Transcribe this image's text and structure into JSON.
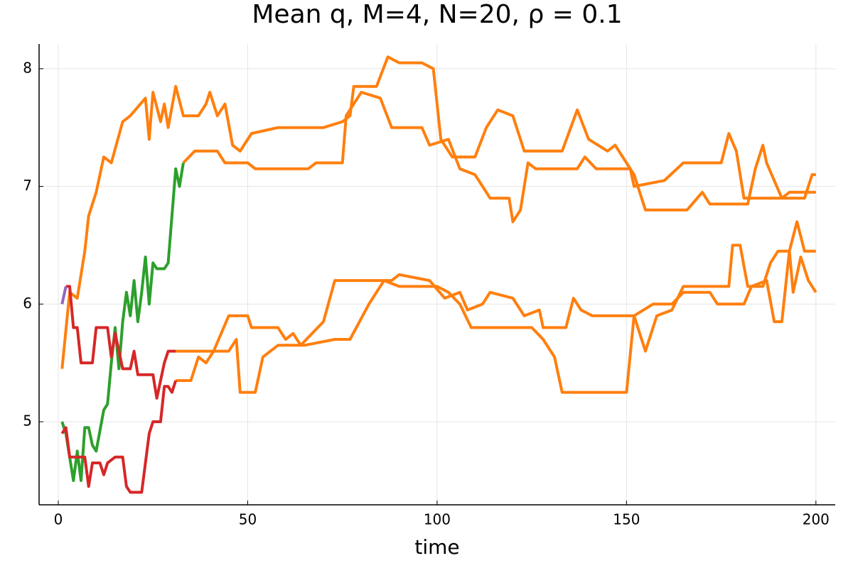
{
  "chart_data": {
    "type": "line",
    "title": "Mean q, M=4, N=20, ρ = 0.1",
    "x_label": "time",
    "xlim": [
      -5.07,
      205.1
    ],
    "ylim": [
      4.294,
      8.21
    ],
    "xticks": [
      0,
      50,
      100,
      150,
      200
    ],
    "yticks": [
      5,
      6,
      7,
      8
    ],
    "grid": true,
    "series": [
      {
        "color": "#ff7f0e",
        "x": [
          1,
          3,
          5,
          7,
          8,
          10,
          12,
          14,
          17,
          19,
          23,
          24,
          25,
          27,
          28,
          29,
          31,
          33,
          37,
          39,
          40,
          42,
          44,
          46,
          48,
          51,
          58,
          70,
          75,
          77,
          78,
          84,
          87,
          90,
          96,
          99,
          101,
          104,
          110,
          113,
          116,
          120,
          123,
          133,
          137,
          140,
          145,
          147,
          152,
          155,
          166,
          170,
          172,
          182,
          184,
          186,
          187,
          191,
          193,
          200
        ],
        "values": [
          5.45,
          6.1,
          6.05,
          6.45,
          6.75,
          6.95,
          7.25,
          7.2,
          7.55,
          7.6,
          7.75,
          7.4,
          7.8,
          7.55,
          7.7,
          7.5,
          7.85,
          7.6,
          7.6,
          7.7,
          7.8,
          7.6,
          7.7,
          7.35,
          7.3,
          7.45,
          7.5,
          7.5,
          7.55,
          7.6,
          7.85,
          7.85,
          8.1,
          8.05,
          8.05,
          8.0,
          7.4,
          7.25,
          7.25,
          7.5,
          7.65,
          7.6,
          7.3,
          7.3,
          7.65,
          7.4,
          7.3,
          7.35,
          7.1,
          6.8,
          6.8,
          6.95,
          6.85,
          6.85,
          7.15,
          7.35,
          7.2,
          6.9,
          6.95,
          6.95
        ]
      },
      {
        "color": "#ff7f0e",
        "x": [
          33,
          36,
          42,
          44,
          50,
          52,
          66,
          68,
          75,
          76,
          80,
          85,
          88,
          96,
          98,
          103,
          106,
          110,
          114,
          119,
          120,
          122,
          124,
          126,
          137,
          139,
          142,
          151,
          152,
          160,
          165,
          175,
          177,
          179,
          181,
          197,
          199,
          200
        ],
        "values": [
          7.2,
          7.3,
          7.3,
          7.2,
          7.2,
          7.15,
          7.15,
          7.2,
          7.2,
          7.6,
          7.8,
          7.75,
          7.5,
          7.5,
          7.35,
          7.4,
          7.15,
          7.1,
          6.9,
          6.9,
          6.7,
          6.8,
          7.2,
          7.15,
          7.15,
          7.25,
          7.15,
          7.15,
          7.0,
          7.05,
          7.2,
          7.2,
          7.45,
          7.3,
          6.9,
          6.9,
          7.1,
          7.1
        ]
      },
      {
        "color": "#ff7f0e",
        "x": [
          31,
          45,
          47,
          48,
          52,
          54,
          58,
          65,
          73,
          77,
          82,
          86,
          90,
          100,
          103,
          106,
          109,
          125,
          128,
          131,
          133,
          150,
          152,
          157,
          162,
          165,
          172,
          174,
          181,
          183,
          187,
          189,
          191,
          193,
          195,
          197,
          200
        ],
        "values": [
          5.6,
          5.6,
          5.7,
          5.25,
          5.25,
          5.55,
          5.65,
          5.65,
          5.7,
          5.7,
          6.0,
          6.2,
          6.15,
          6.15,
          6.1,
          6.0,
          5.8,
          5.8,
          5.7,
          5.55,
          5.25,
          5.25,
          5.9,
          6.0,
          6.0,
          6.1,
          6.1,
          6.0,
          6.0,
          6.15,
          6.2,
          5.85,
          5.85,
          6.45,
          6.7,
          6.45,
          6.45
        ]
      },
      {
        "color": "#ff7f0e",
        "x": [
          31,
          35,
          37,
          39,
          41,
          45,
          50,
          51,
          58,
          60,
          62,
          64,
          70,
          73,
          88,
          90,
          98,
          102,
          106,
          108,
          112,
          114,
          120,
          123,
          127,
          128,
          134,
          136,
          138,
          141,
          152,
          155,
          158,
          162,
          165,
          177,
          178,
          180,
          182,
          186,
          188,
          190,
          193,
          194,
          196,
          198,
          200
        ],
        "values": [
          5.35,
          5.35,
          5.55,
          5.5,
          5.6,
          5.9,
          5.9,
          5.8,
          5.8,
          5.7,
          5.75,
          5.65,
          5.85,
          6.2,
          6.2,
          6.25,
          6.2,
          6.05,
          6.1,
          5.95,
          6.0,
          6.1,
          6.05,
          5.9,
          5.95,
          5.8,
          5.8,
          6.05,
          5.95,
          5.9,
          5.9,
          5.6,
          5.9,
          5.95,
          6.15,
          6.15,
          6.5,
          6.5,
          6.15,
          6.15,
          6.35,
          6.45,
          6.45,
          6.1,
          6.4,
          6.2,
          6.1
        ]
      },
      {
        "color": "#2ca02c",
        "x": [
          1,
          2,
          3,
          4,
          5,
          6,
          7,
          8,
          9,
          10,
          12,
          13,
          14,
          15,
          16,
          17,
          18,
          19,
          20,
          21,
          22,
          23,
          24,
          25,
          26,
          28,
          29,
          30,
          31,
          32,
          33
        ],
        "values": [
          5.0,
          4.9,
          4.7,
          4.5,
          4.75,
          4.5,
          4.95,
          4.95,
          4.8,
          4.75,
          5.1,
          5.15,
          5.5,
          5.8,
          5.45,
          5.85,
          6.1,
          5.9,
          6.2,
          5.85,
          6.1,
          6.4,
          6.0,
          6.35,
          6.3,
          6.3,
          6.35,
          6.75,
          7.15,
          7.0,
          7.2
        ]
      },
      {
        "color": "#d62728",
        "x": [
          1,
          2,
          3,
          7,
          8,
          9,
          11,
          12,
          13,
          15,
          17,
          18,
          19,
          22,
          24,
          25,
          27,
          28,
          29,
          30,
          31
        ],
        "values": [
          4.9,
          4.95,
          4.7,
          4.7,
          4.45,
          4.65,
          4.65,
          4.55,
          4.65,
          4.7,
          4.7,
          4.45,
          4.4,
          4.4,
          4.9,
          5.0,
          5.0,
          5.3,
          5.3,
          5.25,
          5.35
        ]
      },
      {
        "color": "#d62728",
        "x": [
          2,
          3,
          4,
          5,
          6,
          9,
          10,
          13,
          14,
          15,
          17,
          19,
          20,
          21,
          25,
          26,
          28,
          29,
          31
        ],
        "values": [
          6.15,
          6.15,
          5.8,
          5.8,
          5.5,
          5.5,
          5.8,
          5.8,
          5.55,
          5.75,
          5.45,
          5.45,
          5.6,
          5.4,
          5.4,
          5.2,
          5.5,
          5.6,
          5.6
        ]
      },
      {
        "color": "#9467bd",
        "x": [
          1,
          2
        ],
        "values": [
          6.0,
          6.15
        ]
      }
    ]
  }
}
